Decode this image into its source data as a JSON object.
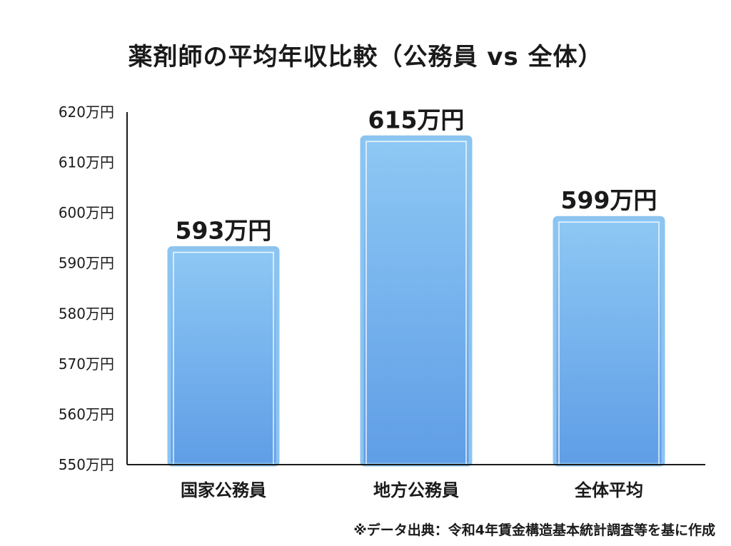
{
  "chart_data": {
    "type": "bar",
    "title": "薬剤師の平均年収比較（公務員 vs 全体）",
    "categories": [
      "国家公務員",
      "地方公務員",
      "全体平均"
    ],
    "values": [
      593,
      615,
      599
    ],
    "value_labels": [
      "593万円",
      "615万円",
      "599万円"
    ],
    "ylim": [
      550,
      620
    ],
    "yticks": [
      550,
      560,
      570,
      580,
      590,
      600,
      610,
      620
    ],
    "ytick_labels": [
      "550万円",
      "560万円",
      "570万円",
      "580万円",
      "590万円",
      "600万円",
      "610万円",
      "620万円"
    ],
    "xlabel": "",
    "ylabel": "",
    "grid": false,
    "legend": "none",
    "colors": {
      "bar_top": "#8ec8f4",
      "bar_bottom": "#5f9de6",
      "bar_border": "#8cc4f0",
      "axis": "#1a1a1a",
      "text": "#1a1a1a"
    }
  },
  "source_note": "※データ出典：令和4年賃金構造基本統計調査等を基に作成"
}
